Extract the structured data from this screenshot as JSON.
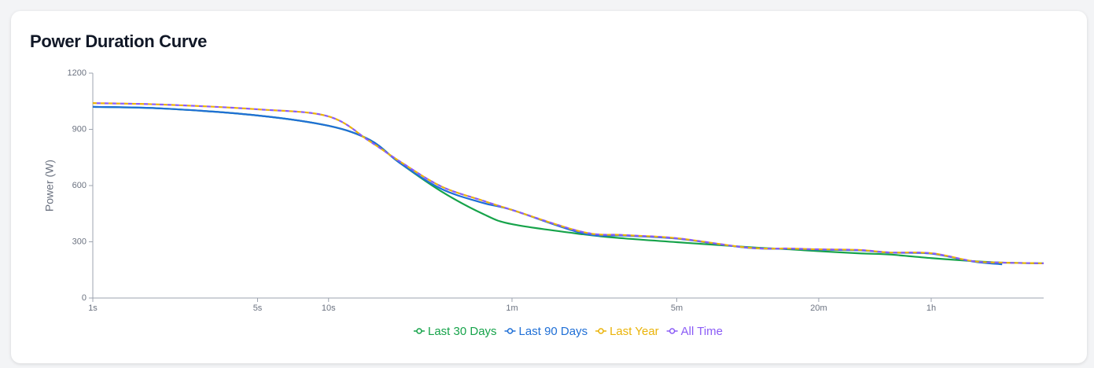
{
  "chart_data": {
    "type": "line",
    "title": "Power Duration Curve",
    "y_label": "Power (W)",
    "x_scale": "log",
    "x": [
      1,
      2,
      5,
      10,
      15,
      20,
      30,
      45,
      60,
      120,
      180,
      300,
      600,
      900,
      1200,
      1800,
      2400,
      3600,
      5400,
      7200,
      10800
    ],
    "xlim": [
      1,
      10800
    ],
    "xticks": [
      {
        "value": 1,
        "label": "1s"
      },
      {
        "value": 5,
        "label": "5s"
      },
      {
        "value": 10,
        "label": "10s"
      },
      {
        "value": 60,
        "label": "1m"
      },
      {
        "value": 300,
        "label": "5m"
      },
      {
        "value": 1200,
        "label": "20m"
      },
      {
        "value": 3600,
        "label": "1h"
      }
    ],
    "ylim": [
      0,
      1200
    ],
    "yticks": [
      0,
      300,
      600,
      900,
      1200
    ],
    "grid": false,
    "series": [
      {
        "name": "Last 30 Days",
        "color": "#16a34a",
        "dashed": false,
        "values": [
          1020,
          1011,
          974,
          919,
          843,
          722,
          570,
          450,
          394,
          340,
          318,
          298,
          272,
          260,
          250,
          238,
          232,
          213,
          197,
          189,
          185
        ]
      },
      {
        "name": "Last 90 Days",
        "color": "#1f6fd6",
        "dashed": false,
        "values": [
          1020,
          1011,
          974,
          919,
          843,
          722,
          583,
          508,
          470,
          345,
          333,
          317,
          268,
          263,
          258,
          254,
          242,
          237,
          195,
          180,
          null
        ]
      },
      {
        "name": "Last Year",
        "color": "#eab308",
        "dashed": true,
        "values": [
          1040,
          1032,
          1007,
          969,
          835,
          730,
          596,
          520,
          470,
          352,
          336,
          319,
          269,
          264,
          260,
          256,
          243,
          239,
          197,
          189,
          185
        ]
      },
      {
        "name": "All Time",
        "color": "#8b5cf6",
        "dashed": true,
        "values": [
          1040,
          1032,
          1007,
          969,
          835,
          730,
          596,
          520,
          470,
          352,
          336,
          319,
          269,
          264,
          260,
          256,
          243,
          239,
          197,
          189,
          185
        ]
      }
    ]
  }
}
